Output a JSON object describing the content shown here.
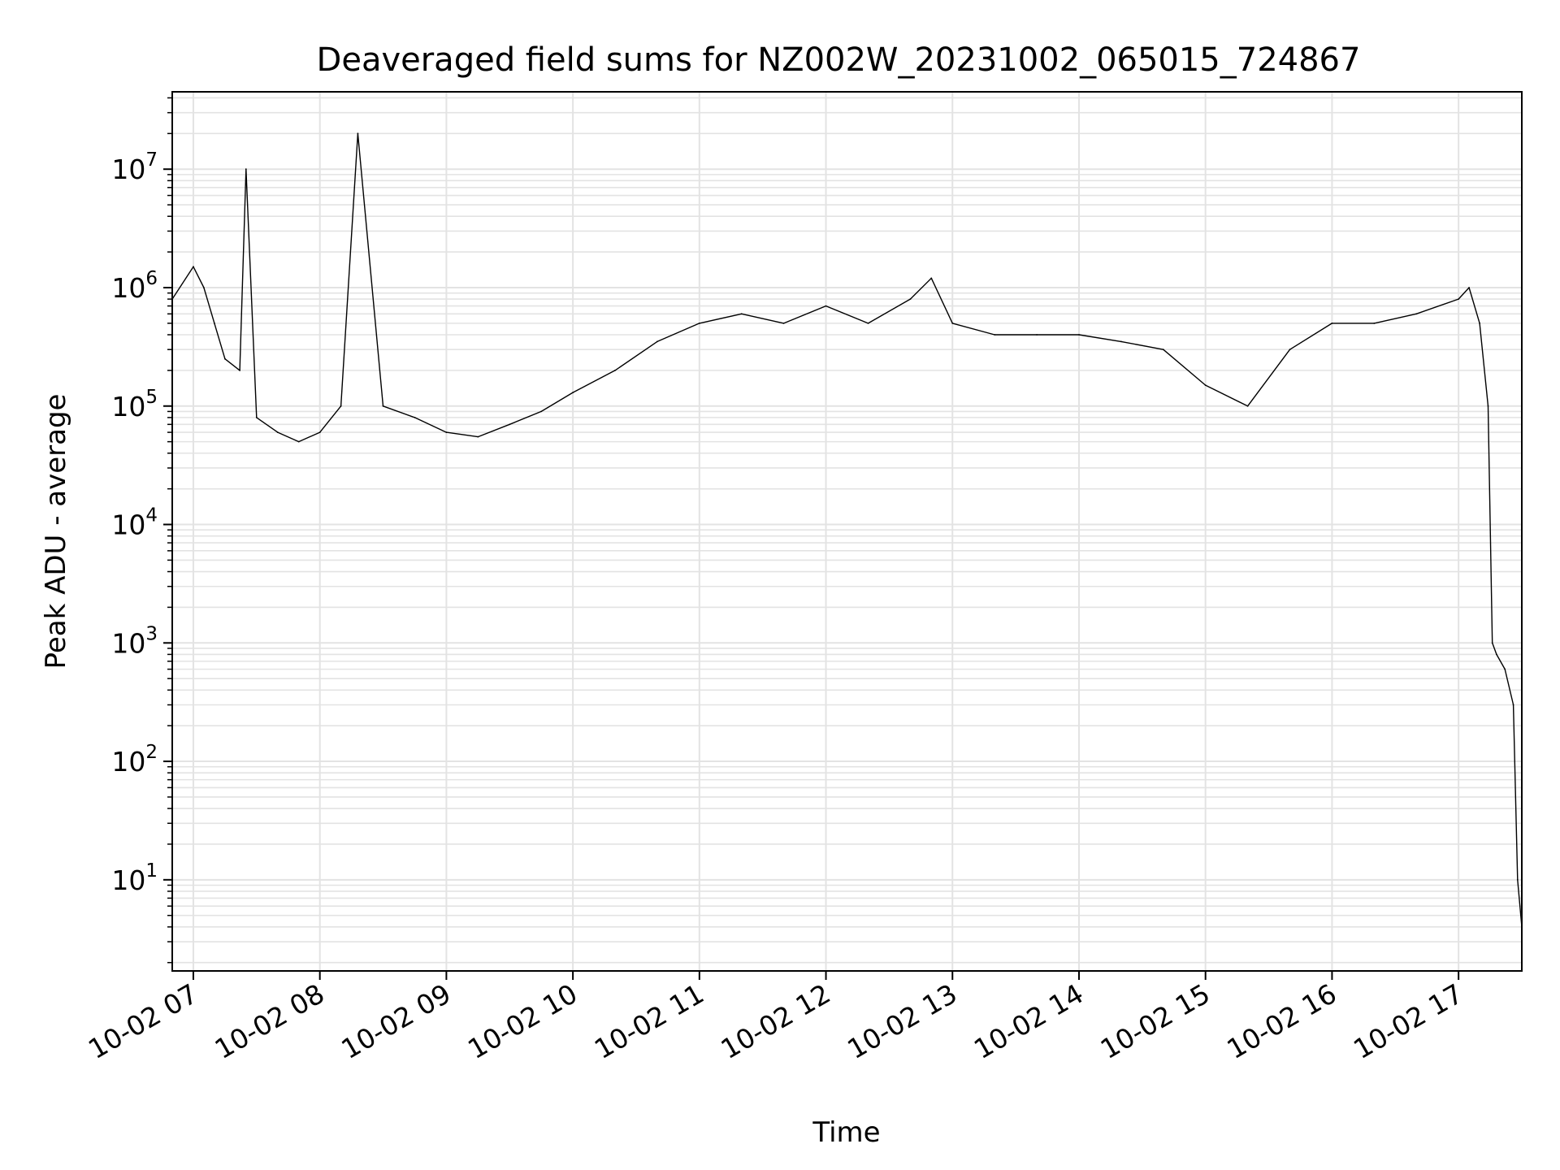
{
  "chart_data": {
    "type": "line",
    "title": "Deaveraged field sums for NZ002W_20231002_065015_724867",
    "xlabel": "Time",
    "ylabel": "Peak ADU - average",
    "y_scale": "log",
    "xlim": [
      "10-02 06:50",
      "10-02 17:30"
    ],
    "ylim": [
      1.7,
      45000000
    ],
    "grid": true,
    "line_color": "#000000",
    "x_ticks": [
      "10-02 07",
      "10-02 08",
      "10-02 09",
      "10-02 10",
      "10-02 11",
      "10-02 12",
      "10-02 13",
      "10-02 14",
      "10-02 15",
      "10-02 16",
      "10-02 17"
    ],
    "y_ticks": [
      {
        "base": "10",
        "exp": "1",
        "value": 10
      },
      {
        "base": "10",
        "exp": "2",
        "value": 100
      },
      {
        "base": "10",
        "exp": "3",
        "value": 1000
      },
      {
        "base": "10",
        "exp": "4",
        "value": 10000
      },
      {
        "base": "10",
        "exp": "5",
        "value": 100000
      },
      {
        "base": "10",
        "exp": "6",
        "value": 1000000
      },
      {
        "base": "10",
        "exp": "7",
        "value": 10000000
      }
    ],
    "series": [
      {
        "x": [
          "10-02 06:50",
          "10-02 07:00",
          "10-02 07:05",
          "10-02 07:10",
          "10-02 07:15",
          "10-02 07:22",
          "10-02 07:25",
          "10-02 07:30",
          "10-02 07:40",
          "10-02 07:50",
          "10-02 08:00",
          "10-02 08:10",
          "10-02 08:18",
          "10-02 08:30",
          "10-02 08:45",
          "10-02 09:00",
          "10-02 09:15",
          "10-02 09:30",
          "10-02 09:45",
          "10-02 10:00",
          "10-02 10:20",
          "10-02 10:40",
          "10-02 11:00",
          "10-02 11:20",
          "10-02 11:40",
          "10-02 12:00",
          "10-02 12:20",
          "10-02 12:40",
          "10-02 12:50",
          "10-02 13:00",
          "10-02 13:20",
          "10-02 13:40",
          "10-02 14:00",
          "10-02 14:20",
          "10-02 14:40",
          "10-02 15:00",
          "10-02 15:20",
          "10-02 15:40",
          "10-02 16:00",
          "10-02 16:20",
          "10-02 16:40",
          "10-02 17:00",
          "10-02 17:05",
          "10-02 17:10",
          "10-02 17:14",
          "10-02 17:16",
          "10-02 17:18",
          "10-02 17:22",
          "10-02 17:26",
          "10-02 17:28",
          "10-02 17:30"
        ],
        "y": [
          800000,
          1500000,
          1000000,
          500000,
          250000,
          200000,
          10000000,
          80000,
          60000,
          50000,
          60000,
          100000,
          20000000,
          100000,
          80000,
          60000,
          55000,
          70000,
          90000,
          130000,
          200000,
          350000,
          500000,
          600000,
          500000,
          700000,
          500000,
          800000,
          1200000,
          500000,
          400000,
          400000,
          400000,
          350000,
          300000,
          150000,
          100000,
          300000,
          500000,
          500000,
          600000,
          800000,
          1000000,
          500000,
          100000,
          1000,
          800,
          600,
          300,
          10,
          4
        ]
      }
    ]
  }
}
